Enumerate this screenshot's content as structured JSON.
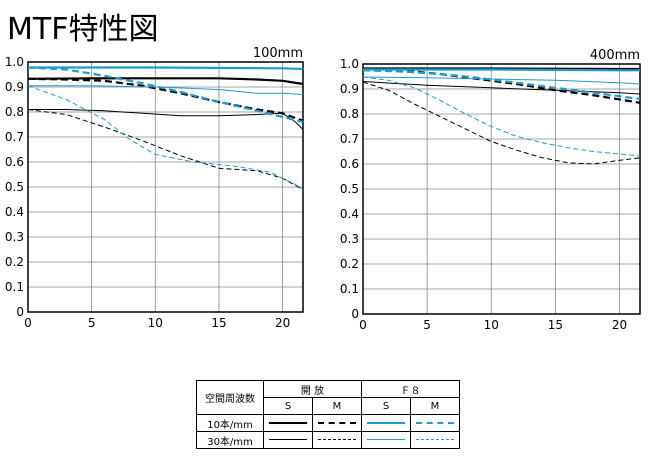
{
  "title": "MTF特性図",
  "chart_data": [
    {
      "type": "line",
      "focal_label": "100mm",
      "xlim": [
        0,
        21.6
      ],
      "ylim": [
        0,
        1.0
      ],
      "x_ticks": [
        "0",
        "5",
        "10",
        "15",
        "20"
      ],
      "y_ticks": [
        "0",
        "0.1",
        "0.2",
        "0.3",
        "0.4",
        "0.5",
        "0.6",
        "0.7",
        "0.8",
        "0.9",
        "1.0"
      ],
      "grid": true,
      "series": [
        {
          "name": "open-10-S",
          "color": "#000000",
          "width": 2.2,
          "dash": "",
          "x": [
            0,
            5,
            10,
            15,
            18,
            20,
            21.6
          ],
          "y": [
            0.933,
            0.935,
            0.935,
            0.935,
            0.93,
            0.925,
            0.912
          ]
        },
        {
          "name": "open-10-M",
          "color": "#000000",
          "width": 2.2,
          "dash": "7,4",
          "x": [
            0,
            3,
            6,
            9,
            12,
            15,
            18,
            20,
            21.6
          ],
          "y": [
            0.933,
            0.93,
            0.925,
            0.905,
            0.875,
            0.84,
            0.81,
            0.795,
            0.765
          ]
        },
        {
          "name": "open-30-S",
          "color": "#000000",
          "width": 1,
          "dash": "",
          "x": [
            0,
            3,
            6,
            9,
            12,
            15,
            18,
            20,
            21,
            21.6
          ],
          "y": [
            0.81,
            0.81,
            0.805,
            0.795,
            0.785,
            0.785,
            0.79,
            0.795,
            0.76,
            0.73
          ]
        },
        {
          "name": "open-30-M",
          "color": "#000000",
          "width": 1,
          "dash": "5,3",
          "x": [
            0,
            3,
            6,
            9,
            12,
            15,
            18,
            20,
            21.6
          ],
          "y": [
            0.81,
            0.79,
            0.74,
            0.685,
            0.625,
            0.575,
            0.565,
            0.535,
            0.49
          ]
        },
        {
          "name": "f8-10-S",
          "color": "#1f9bd1",
          "width": 2.2,
          "dash": "",
          "x": [
            0,
            10,
            20,
            21.6
          ],
          "y": [
            0.978,
            0.978,
            0.975,
            0.972
          ]
        },
        {
          "name": "f8-10-M",
          "color": "#1f9bd1",
          "width": 2.2,
          "dash": "7,4",
          "x": [
            0,
            3,
            6,
            9,
            12,
            15,
            18,
            20,
            21.6
          ],
          "y": [
            0.978,
            0.97,
            0.945,
            0.915,
            0.88,
            0.84,
            0.805,
            0.78,
            0.76
          ]
        },
        {
          "name": "f8-30-S",
          "color": "#1f9bd1",
          "width": 1,
          "dash": "",
          "x": [
            0,
            5,
            10,
            15,
            18,
            20,
            21.6
          ],
          "y": [
            0.905,
            0.905,
            0.9,
            0.89,
            0.875,
            0.875,
            0.87
          ]
        },
        {
          "name": "f8-30-M",
          "color": "#1f9bd1",
          "width": 1,
          "dash": "5,3",
          "x": [
            0,
            3,
            6,
            8,
            10,
            13,
            16,
            19,
            21,
            21.6
          ],
          "y": [
            0.905,
            0.85,
            0.77,
            0.69,
            0.63,
            0.6,
            0.585,
            0.56,
            0.51,
            0.49
          ]
        }
      ]
    },
    {
      "type": "line",
      "focal_label": "400mm",
      "xlim": [
        0,
        21.6
      ],
      "ylim": [
        0,
        1.0
      ],
      "x_ticks": [
        "0",
        "5",
        "10",
        "15",
        "20"
      ],
      "y_ticks": [
        "0",
        "0.1",
        "0.2",
        "0.3",
        "0.4",
        "0.5",
        "0.6",
        "0.7",
        "0.8",
        "0.9",
        "1.0"
      ],
      "grid": true,
      "series": [
        {
          "name": "open-10-S",
          "color": "#000000",
          "width": 2.2,
          "dash": "",
          "x": [
            0,
            10,
            20,
            21.6
          ],
          "y": [
            0.982,
            0.982,
            0.98,
            0.98
          ]
        },
        {
          "name": "open-10-M",
          "color": "#000000",
          "width": 2.2,
          "dash": "7,4",
          "x": [
            0,
            3,
            6,
            9,
            12,
            15,
            18,
            21.6
          ],
          "y": [
            0.978,
            0.975,
            0.96,
            0.94,
            0.92,
            0.895,
            0.875,
            0.845
          ]
        },
        {
          "name": "open-30-S",
          "color": "#000000",
          "width": 1,
          "dash": "",
          "x": [
            0,
            5,
            10,
            15,
            20,
            21.6
          ],
          "y": [
            0.93,
            0.915,
            0.905,
            0.895,
            0.885,
            0.88
          ]
        },
        {
          "name": "open-30-M",
          "color": "#000000",
          "width": 1,
          "dash": "5,3",
          "x": [
            0,
            2,
            4,
            6,
            8,
            10,
            12,
            14,
            16,
            18,
            20,
            21.6
          ],
          "y": [
            0.928,
            0.895,
            0.84,
            0.79,
            0.74,
            0.69,
            0.655,
            0.625,
            0.605,
            0.6,
            0.615,
            0.625
          ]
        },
        {
          "name": "f8-10-S",
          "color": "#1f9bd1",
          "width": 2.2,
          "dash": "",
          "x": [
            0,
            10,
            20,
            21.6
          ],
          "y": [
            0.978,
            0.978,
            0.975,
            0.975
          ]
        },
        {
          "name": "f8-10-M",
          "color": "#1f9bd1",
          "width": 2.2,
          "dash": "7,4",
          "x": [
            0,
            3,
            6,
            9,
            12,
            15,
            18,
            21.6
          ],
          "y": [
            0.975,
            0.97,
            0.96,
            0.945,
            0.925,
            0.905,
            0.885,
            0.86
          ]
        },
        {
          "name": "f8-30-S",
          "color": "#1f9bd1",
          "width": 1,
          "dash": "",
          "x": [
            0,
            5,
            10,
            15,
            20,
            21.6
          ],
          "y": [
            0.948,
            0.945,
            0.94,
            0.935,
            0.925,
            0.92
          ]
        },
        {
          "name": "f8-30-M",
          "color": "#1f9bd1",
          "width": 1,
          "dash": "5,3",
          "x": [
            0,
            2,
            4,
            6,
            8,
            10,
            12,
            14,
            16,
            18,
            20,
            21.6
          ],
          "y": [
            0.948,
            0.935,
            0.905,
            0.855,
            0.8,
            0.75,
            0.71,
            0.685,
            0.665,
            0.65,
            0.64,
            0.632
          ]
        }
      ]
    }
  ],
  "legend": {
    "row_header": "空間周波数",
    "group_open": "開 放",
    "group_f8": "Ｆ８",
    "col_s": "S",
    "col_m": "M",
    "row_10": "10本/mm",
    "row_30": "30本/mm",
    "color_black": "#000000",
    "color_blue": "#1f9bd1"
  }
}
